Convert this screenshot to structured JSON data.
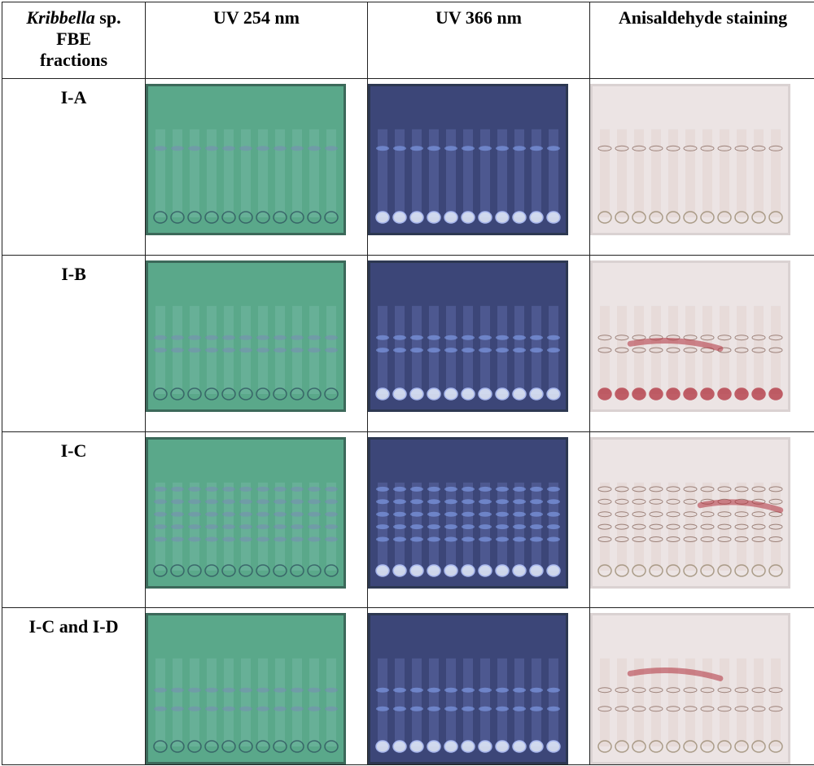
{
  "table": {
    "headers": {
      "col0_genus": "Kribbella",
      "col0_rest_line1": " sp.",
      "col0_line2": "FBE",
      "col0_line3": "fractions",
      "col1": "UV 254 nm",
      "col2": "UV 366 nm",
      "col3": "Anisaldehyde staining"
    },
    "rows": [
      {
        "label": "I-A"
      },
      {
        "label": "I-B"
      },
      {
        "label": "I-C"
      },
      {
        "label": "I-C and I-D"
      }
    ]
  },
  "colors": {
    "uv254_plate": "#5aa88a",
    "uv366_plate": "#3c4678",
    "anisaldehyde_plate": "#ece4e4",
    "stain_spot": "#b0303c"
  }
}
